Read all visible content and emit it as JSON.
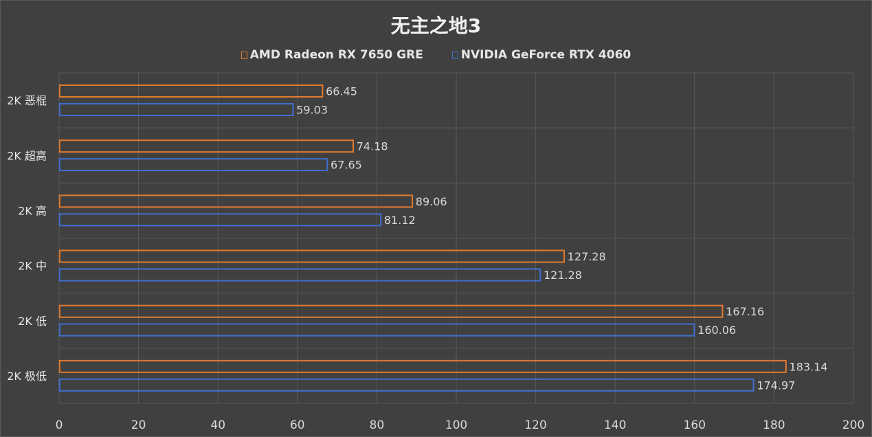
{
  "chart_data": {
    "type": "bar",
    "orientation": "horizontal",
    "title": "无主之地3",
    "categories": [
      "2K 恶棍",
      "2K 超高",
      "2K 高",
      "2K 中",
      "2K 低",
      "2K 极低"
    ],
    "series": [
      {
        "name": "AMD Radeon RX 7650 GRE",
        "color": "#e07b2f",
        "values": [
          66.45,
          74.18,
          89.06,
          127.28,
          167.16,
          183.14
        ],
        "labels": [
          "66.45",
          "74.18",
          "89.06",
          "127.28",
          "167.16",
          "183.14"
        ]
      },
      {
        "name": "NVIDIA GeForce RTX 4060",
        "color": "#3f6fd1",
        "values": [
          59.03,
          67.65,
          81.12,
          121.28,
          160.06,
          174.97
        ],
        "labels": [
          "59.03",
          "67.65",
          "81.12",
          "121.28",
          "160.06",
          "174.97"
        ]
      }
    ],
    "xlim": [
      0,
      200
    ],
    "xticks": [
      0,
      20,
      40,
      60,
      80,
      100,
      120,
      140,
      160,
      180,
      200
    ],
    "grid": true,
    "legend_position": "top-center",
    "xlabel": "",
    "ylabel": ""
  },
  "colors": {
    "background": "#404040",
    "grid": "#595959",
    "text": "#e6e6e6"
  }
}
